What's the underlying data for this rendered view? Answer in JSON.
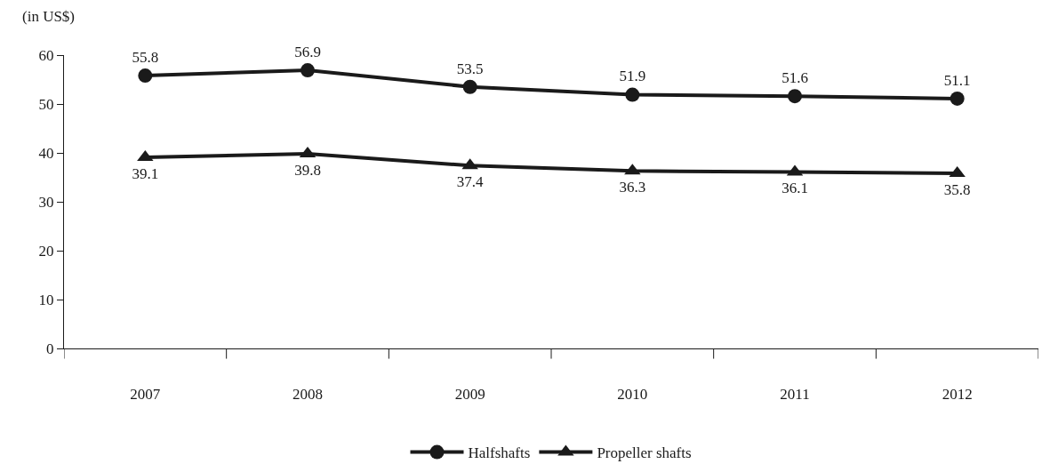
{
  "chart_data": {
    "type": "line",
    "ylabel": "(in US$)",
    "categories": [
      "2007",
      "2008",
      "2009",
      "2010",
      "2011",
      "2012"
    ],
    "series": [
      {
        "name": "Halfshafts",
        "color": "#1a1a1a",
        "marker": "circle",
        "values": [
          55.8,
          56.9,
          53.5,
          51.9,
          51.6,
          51.1
        ]
      },
      {
        "name": "Propeller shafts",
        "color": "#1a1a1a",
        "marker": "triangle",
        "values": [
          39.1,
          39.8,
          37.4,
          36.3,
          36.1,
          35.8
        ]
      }
    ],
    "ylim": [
      0,
      60
    ],
    "yticks": [
      0,
      10,
      20,
      30,
      40,
      50,
      60
    ],
    "grid": false,
    "legend": "bottom",
    "data_labels": true,
    "line_style": "solid"
  }
}
